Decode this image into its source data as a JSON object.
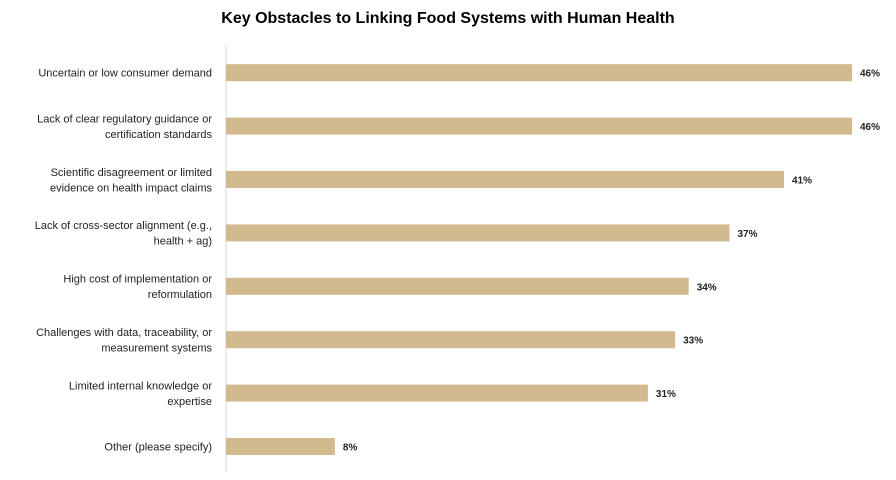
{
  "chart_data": {
    "type": "bar",
    "orientation": "horizontal",
    "title": "Key Obstacles to Linking Food Systems with Human Health",
    "xlabel": "",
    "ylabel": "",
    "xlim": [
      0,
      46
    ],
    "grid": false,
    "legend": "none",
    "bar_color": "#D2B98E",
    "categories": [
      [
        "Uncertain or low consumer demand"
      ],
      [
        "Lack of clear regulatory guidance or",
        "certification standards"
      ],
      [
        "Scientific disagreement or limited",
        "evidence on health impact claims"
      ],
      [
        "Lack of cross-sector alignment (e.g.,",
        "health + ag)"
      ],
      [
        "High cost of implementation or",
        "reformulation"
      ],
      [
        "Challenges with data, traceability, or",
        "measurement systems"
      ],
      [
        "Limited internal knowledge or",
        "expertise"
      ],
      [
        "Other (please specify)"
      ]
    ],
    "values": [
      46,
      46,
      41,
      37,
      34,
      33,
      31,
      8
    ],
    "value_labels": [
      "46%",
      "46%",
      "41%",
      "37%",
      "34%",
      "33%",
      "31%",
      "8%"
    ]
  }
}
